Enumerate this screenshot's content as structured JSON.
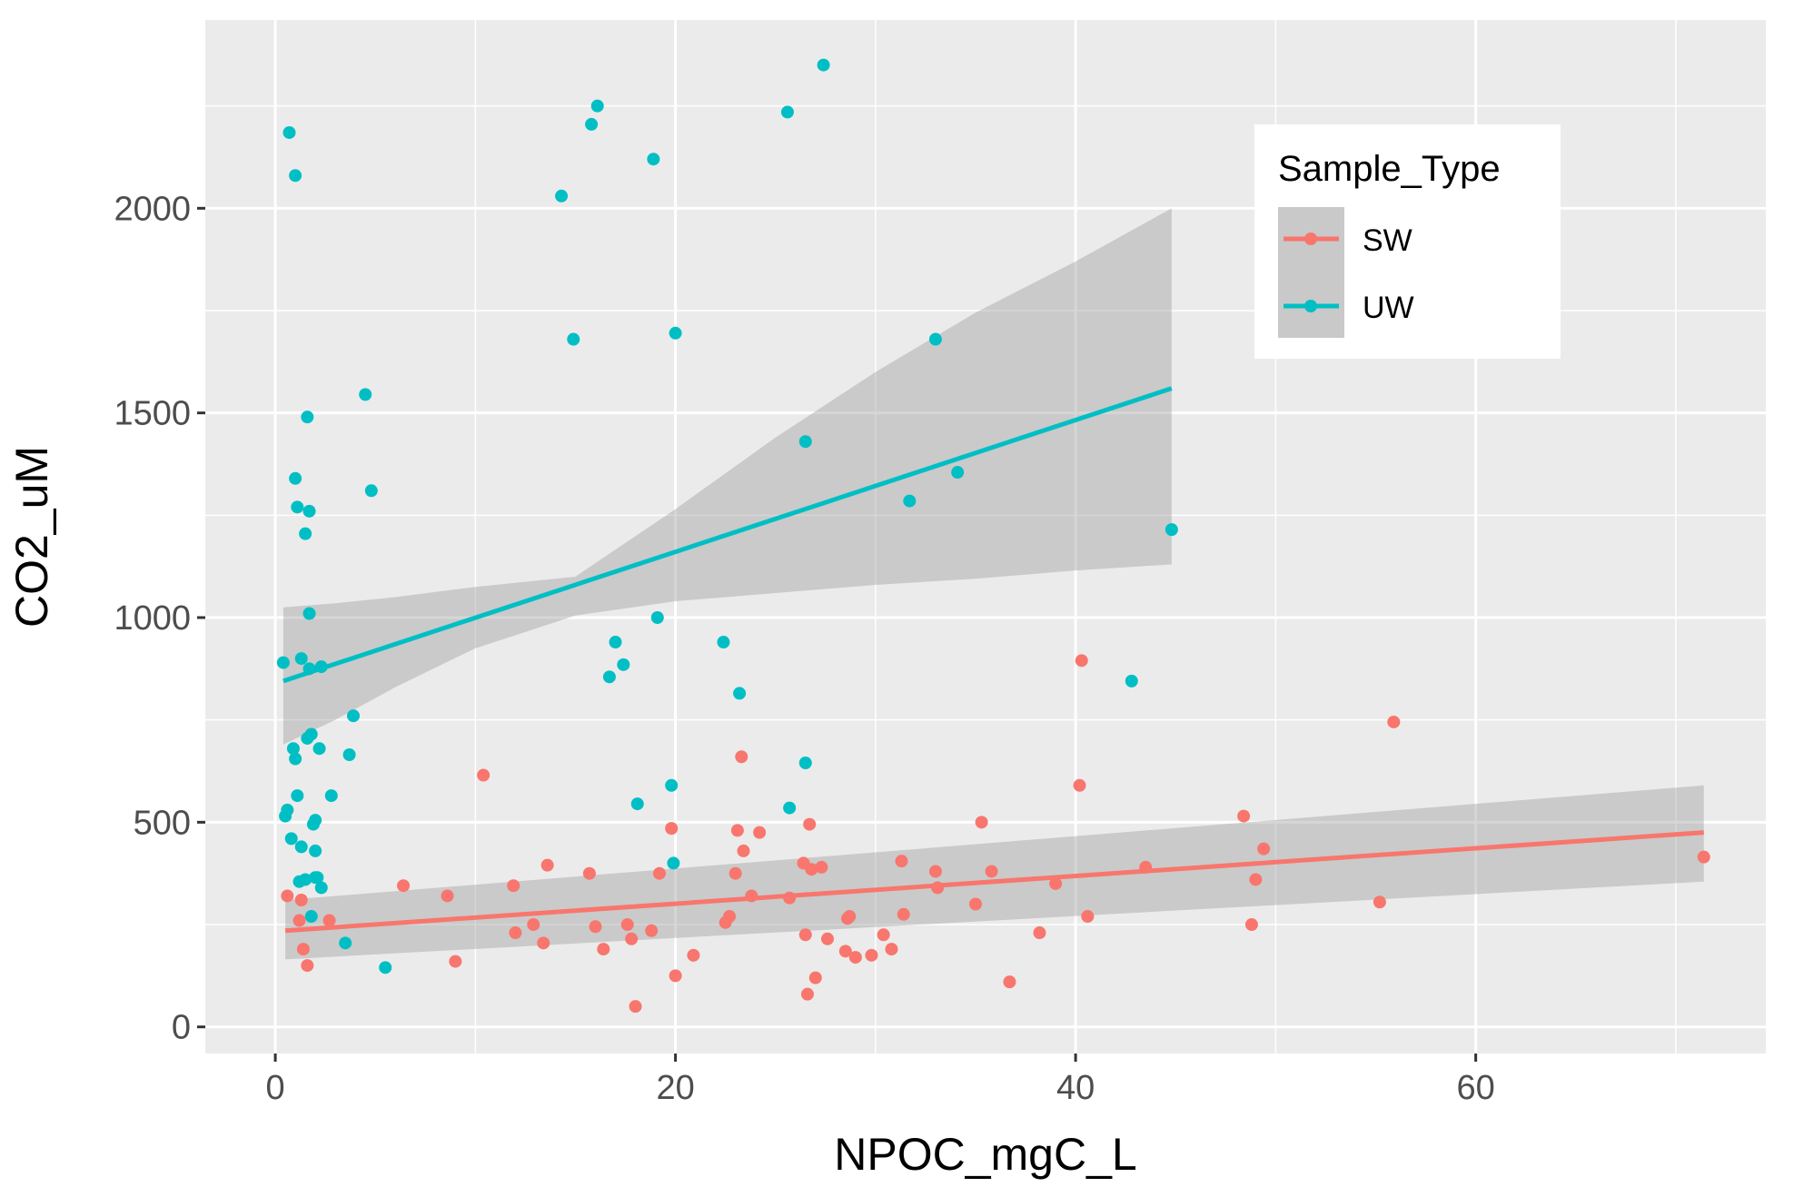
{
  "chart_data": {
    "type": "scatter",
    "xlabel": "NPOC_mgC_L",
    "ylabel": "CO2_uM",
    "xlim": [
      -3.5,
      74.5
    ],
    "ylim": [
      -65,
      2460
    ],
    "x_ticks": [
      0,
      20,
      40,
      60
    ],
    "y_ticks": [
      0,
      500,
      1000,
      1500,
      2000
    ],
    "grid": true,
    "legend": {
      "title": "Sample_Type",
      "position": "top-right",
      "entries": [
        "SW",
        "UW"
      ]
    },
    "colors": {
      "panel": "#ebebeb",
      "grid_major": "#ffffff",
      "band": "#999999",
      "SW": "#F8766D",
      "UW": "#00BFC4"
    },
    "series": [
      {
        "name": "SW",
        "color": "#F8766D",
        "points": [
          [
            0.6,
            320
          ],
          [
            1.2,
            260
          ],
          [
            1.3,
            310
          ],
          [
            1.4,
            190
          ],
          [
            1.6,
            150
          ],
          [
            2.7,
            260
          ],
          [
            6.4,
            345
          ],
          [
            8.6,
            320
          ],
          [
            9.0,
            160
          ],
          [
            10.4,
            615
          ],
          [
            11.9,
            345
          ],
          [
            12.0,
            230
          ],
          [
            12.9,
            250
          ],
          [
            13.4,
            205
          ],
          [
            13.6,
            395
          ],
          [
            15.7,
            375
          ],
          [
            16.0,
            245
          ],
          [
            16.4,
            190
          ],
          [
            17.6,
            250
          ],
          [
            17.8,
            215
          ],
          [
            18.0,
            50
          ],
          [
            18.8,
            235
          ],
          [
            19.2,
            375
          ],
          [
            19.8,
            485
          ],
          [
            20.0,
            125
          ],
          [
            20.9,
            175
          ],
          [
            22.5,
            255
          ],
          [
            22.7,
            270
          ],
          [
            23.0,
            375
          ],
          [
            23.1,
            480
          ],
          [
            23.3,
            660
          ],
          [
            23.4,
            430
          ],
          [
            23.8,
            320
          ],
          [
            24.2,
            475
          ],
          [
            25.7,
            315
          ],
          [
            26.4,
            400
          ],
          [
            26.5,
            225
          ],
          [
            26.6,
            80
          ],
          [
            26.7,
            495
          ],
          [
            26.8,
            385
          ],
          [
            27.0,
            120
          ],
          [
            27.3,
            390
          ],
          [
            27.6,
            215
          ],
          [
            28.5,
            185
          ],
          [
            28.6,
            265
          ],
          [
            28.7,
            270
          ],
          [
            29.0,
            170
          ],
          [
            29.8,
            175
          ],
          [
            30.4,
            225
          ],
          [
            30.8,
            190
          ],
          [
            31.3,
            405
          ],
          [
            31.4,
            275
          ],
          [
            33.0,
            380
          ],
          [
            33.1,
            340
          ],
          [
            35.0,
            300
          ],
          [
            35.3,
            500
          ],
          [
            35.8,
            380
          ],
          [
            36.7,
            110
          ],
          [
            38.2,
            230
          ],
          [
            39.0,
            350
          ],
          [
            40.2,
            590
          ],
          [
            40.3,
            895
          ],
          [
            40.6,
            270
          ],
          [
            43.5,
            390
          ],
          [
            48.4,
            515
          ],
          [
            48.8,
            250
          ],
          [
            49.0,
            360
          ],
          [
            49.4,
            435
          ],
          [
            55.2,
            305
          ],
          [
            55.9,
            745
          ],
          [
            71.4,
            415
          ]
        ],
        "trend": {
          "x": [
            0.5,
            71.4
          ],
          "y": [
            235,
            475
          ]
        },
        "band": {
          "x": [
            0.5,
            71.4
          ],
          "lower": [
            165,
            355
          ],
          "upper": [
            310,
            590
          ]
        }
      },
      {
        "name": "UW",
        "color": "#00BFC4",
        "points": [
          [
            0.4,
            890
          ],
          [
            0.5,
            515
          ],
          [
            0.6,
            530
          ],
          [
            0.7,
            2185
          ],
          [
            0.8,
            460
          ],
          [
            0.9,
            680
          ],
          [
            1.0,
            1340
          ],
          [
            1.0,
            655
          ],
          [
            1.0,
            2080
          ],
          [
            1.1,
            1270
          ],
          [
            1.1,
            565
          ],
          [
            1.2,
            355
          ],
          [
            1.3,
            440
          ],
          [
            1.3,
            900
          ],
          [
            1.5,
            1205
          ],
          [
            1.5,
            360
          ],
          [
            1.6,
            1490
          ],
          [
            1.6,
            705
          ],
          [
            1.7,
            1260
          ],
          [
            1.7,
            1010
          ],
          [
            1.7,
            875
          ],
          [
            1.8,
            715
          ],
          [
            1.8,
            270
          ],
          [
            1.9,
            495
          ],
          [
            2.0,
            505
          ],
          [
            2.0,
            430
          ],
          [
            2.0,
            365
          ],
          [
            2.1,
            365
          ],
          [
            2.2,
            680
          ],
          [
            2.3,
            880
          ],
          [
            2.3,
            340
          ],
          [
            2.8,
            565
          ],
          [
            3.5,
            205
          ],
          [
            3.7,
            665
          ],
          [
            3.9,
            760
          ],
          [
            4.5,
            1545
          ],
          [
            4.8,
            1310
          ],
          [
            5.5,
            145
          ],
          [
            14.3,
            2030
          ],
          [
            14.9,
            1680
          ],
          [
            15.8,
            2205
          ],
          [
            16.1,
            2250
          ],
          [
            16.7,
            855
          ],
          [
            17.0,
            940
          ],
          [
            17.4,
            885
          ],
          [
            18.1,
            545
          ],
          [
            18.9,
            2120
          ],
          [
            19.1,
            1000
          ],
          [
            19.8,
            590
          ],
          [
            19.9,
            400
          ],
          [
            20.0,
            1695
          ],
          [
            22.4,
            940
          ],
          [
            23.2,
            815
          ],
          [
            25.6,
            2235
          ],
          [
            25.7,
            535
          ],
          [
            26.5,
            1430
          ],
          [
            26.5,
            645
          ],
          [
            27.4,
            2350
          ],
          [
            31.7,
            1285
          ],
          [
            33.0,
            1680
          ],
          [
            34.1,
            1355
          ],
          [
            42.8,
            845
          ],
          [
            44.8,
            1215
          ]
        ],
        "trend": {
          "x": [
            0.4,
            44.8
          ],
          "y": [
            845,
            1560
          ]
        },
        "band": {
          "x": [
            0.4,
            3.0,
            6.0,
            10.0,
            15.0,
            20.0,
            25.0,
            30.0,
            35.0,
            40.0,
            44.8
          ],
          "lower": [
            690,
            750,
            830,
            925,
            1005,
            1040,
            1060,
            1080,
            1095,
            1115,
            1130
          ],
          "upper": [
            1025,
            1035,
            1050,
            1075,
            1100,
            1265,
            1440,
            1600,
            1745,
            1870,
            2000
          ]
        }
      }
    ]
  }
}
